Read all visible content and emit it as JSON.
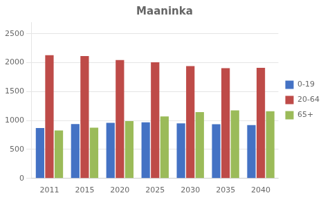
{
  "chart_data": {
    "type": "bar",
    "title": "Maaninka",
    "categories": [
      "2011",
      "2015",
      "2020",
      "2025",
      "2030",
      "2035",
      "2040"
    ],
    "series": [
      {
        "name": "0-19",
        "color": "#4472C4",
        "values": [
          870,
          940,
          960,
          970,
          950,
          935,
          920
        ]
      },
      {
        "name": "20-64",
        "color": "#BE4B48",
        "values": [
          2130,
          2115,
          2045,
          2005,
          1940,
          1905,
          1910
        ]
      },
      {
        "name": "65+",
        "color": "#9BBB59",
        "values": [
          830,
          875,
          990,
          1070,
          1145,
          1175,
          1160
        ]
      }
    ],
    "ylim": [
      0,
      2700
    ],
    "yticks": [
      0,
      500,
      1000,
      1500,
      2000,
      2500
    ],
    "grid": true,
    "legend": "right"
  }
}
